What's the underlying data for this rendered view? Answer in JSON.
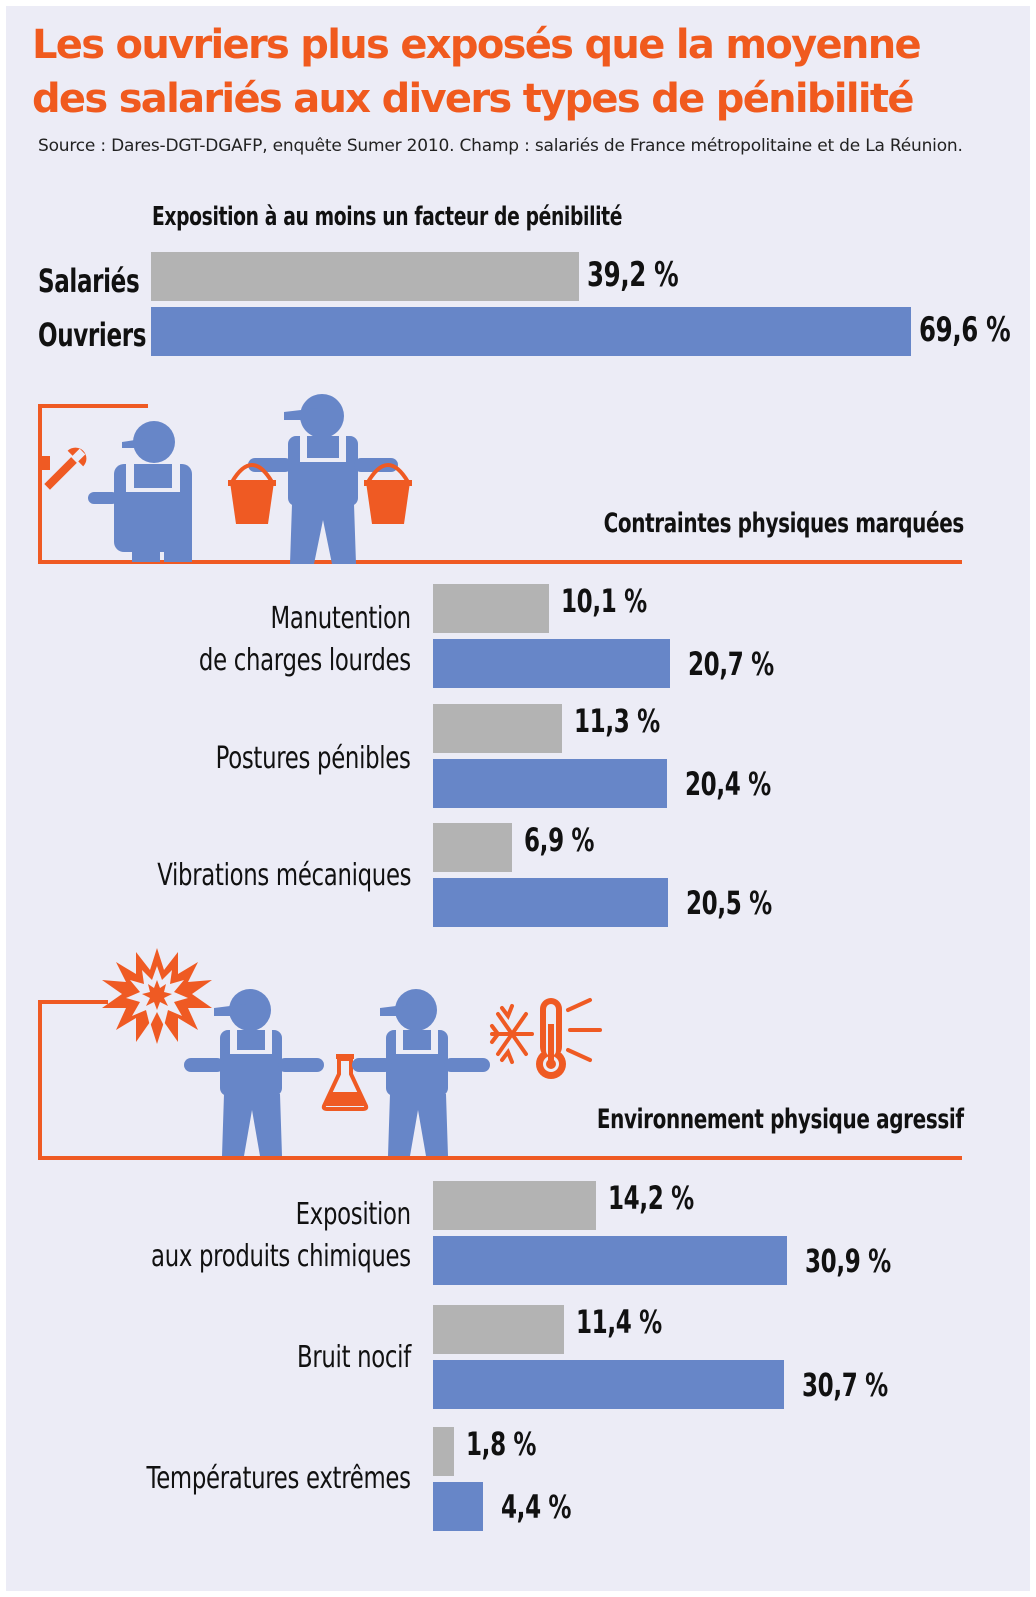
{
  "title_line1": "Les ouvriers plus exposés que la moyenne",
  "title_line2": "des salariés aux divers types de pénibilité",
  "source": "Source : Dares-DGT-DGAFP, enquête Sumer 2010. Champ : salariés de France métropolitaine et de La Réunion.",
  "colors": {
    "title": "#f05a1e",
    "salaries": "#b3b3b3",
    "ouvriers": "#6786c8",
    "accent": "#ef5a23",
    "background": "#ececf6"
  },
  "chart_data": [
    {
      "type": "bar",
      "orientation": "horizontal",
      "title": "Exposition à au moins un facteur de pénibilité",
      "categories": [
        "Salariés",
        "Ouvriers"
      ],
      "values": [
        39.2,
        69.6
      ],
      "value_labels": [
        "39,2 %",
        "69,6 %"
      ],
      "unit": "%"
    },
    {
      "type": "bar",
      "orientation": "horizontal",
      "title": "Contraintes physiques marquées",
      "categories": [
        "Manutention de charges lourdes",
        "Postures pénibles",
        "Vibrations mécaniques"
      ],
      "category_lines": [
        [
          "Manutention",
          "de charges lourdes"
        ],
        [
          "Postures pénibles"
        ],
        [
          "Vibrations mécaniques"
        ]
      ],
      "series": [
        {
          "name": "Salariés",
          "values": [
            10.1,
            11.3,
            6.9
          ],
          "labels": [
            "10,1 %",
            "11,3 %",
            "6,9 %"
          ]
        },
        {
          "name": "Ouvriers",
          "values": [
            20.7,
            20.4,
            20.5
          ],
          "labels": [
            "20,7 %",
            "20,4 %",
            "20,5 %"
          ]
        }
      ],
      "unit": "%"
    },
    {
      "type": "bar",
      "orientation": "horizontal",
      "title": "Environnement physique agressif",
      "categories": [
        "Exposition aux produits chimiques",
        "Bruit nocif",
        "Températures extrêmes"
      ],
      "category_lines": [
        [
          "Exposition",
          "aux produits chimiques"
        ],
        [
          "Bruit nocif"
        ],
        [
          "Températures extrêmes"
        ]
      ],
      "series": [
        {
          "name": "Salariés",
          "values": [
            14.2,
            11.4,
            1.8
          ],
          "labels": [
            "14,2 %",
            "11,4 %",
            "1,8 %"
          ]
        },
        {
          "name": "Ouvriers",
          "values": [
            30.9,
            30.7,
            4.4
          ],
          "labels": [
            "30,9 %",
            "30,7 %",
            "4,4 %"
          ]
        }
      ],
      "unit": "%"
    }
  ],
  "icons": [
    "worker-with-wrench-icon",
    "worker-carrying-buckets-icon",
    "explosion-icon",
    "worker-icon",
    "flask-icon",
    "worker-icon",
    "cold-heat-thermometer-icon"
  ]
}
